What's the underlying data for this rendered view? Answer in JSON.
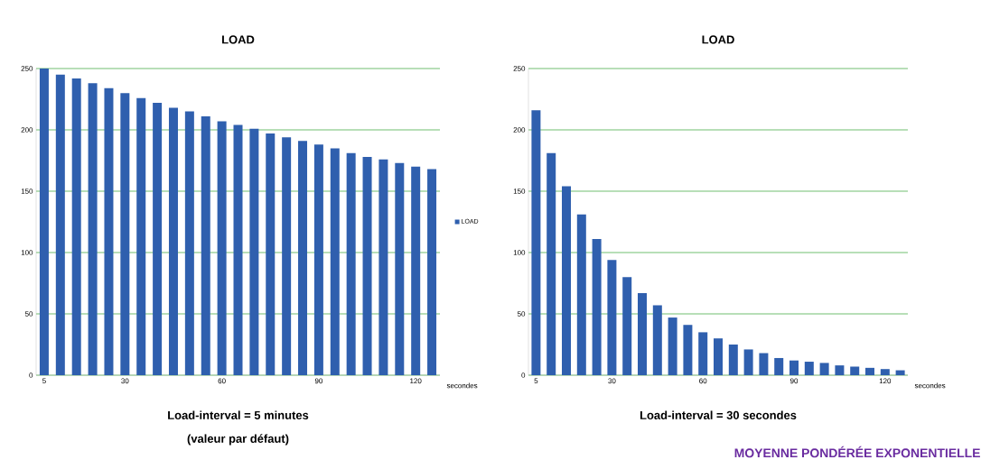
{
  "chart_data": [
    {
      "type": "bar",
      "title": "LOAD",
      "xlabel": "secondes",
      "categories": [
        "5",
        null,
        null,
        null,
        null,
        "30",
        null,
        null,
        null,
        null,
        null,
        "60",
        null,
        null,
        null,
        null,
        null,
        "90",
        null,
        null,
        null,
        null,
        null,
        "120",
        null
      ],
      "series": [
        {
          "name": "LOAD",
          "color": "#2f5fae",
          "values": [
            250,
            245,
            242,
            238,
            234,
            230,
            226,
            222,
            218,
            215,
            211,
            207,
            204,
            201,
            197,
            194,
            191,
            188,
            185,
            181,
            178,
            176,
            173,
            170,
            168
          ]
        }
      ],
      "ylim": [
        0,
        250
      ],
      "yticks": [
        0,
        50,
        100,
        150,
        200,
        250
      ],
      "grid": "y",
      "legend": "right",
      "annotations": [
        "Load-interval = 5 minutes",
        "(valeur par défaut)"
      ]
    },
    {
      "type": "bar",
      "title": "LOAD",
      "xlabel": "secondes",
      "categories": [
        "5",
        null,
        null,
        null,
        null,
        "30",
        null,
        null,
        null,
        null,
        null,
        "60",
        null,
        null,
        null,
        null,
        null,
        "90",
        null,
        null,
        null,
        null,
        null,
        "120",
        null
      ],
      "series": [
        {
          "color": "#2f5fae",
          "values": [
            216,
            181,
            154,
            131,
            111,
            94,
            80,
            67,
            57,
            47,
            41,
            35,
            30,
            25,
            21,
            18,
            14,
            12,
            11,
            10,
            8,
            7,
            6,
            5,
            4
          ]
        }
      ],
      "ylim": [
        0,
        250
      ],
      "yticks": [
        0,
        50,
        100,
        150,
        200,
        250
      ],
      "grid": "y",
      "annotations": [
        "Load-interval = 30 secondes",
        "MOYENNE PONDÉRÉE EXPONENTIELLE"
      ]
    }
  ]
}
